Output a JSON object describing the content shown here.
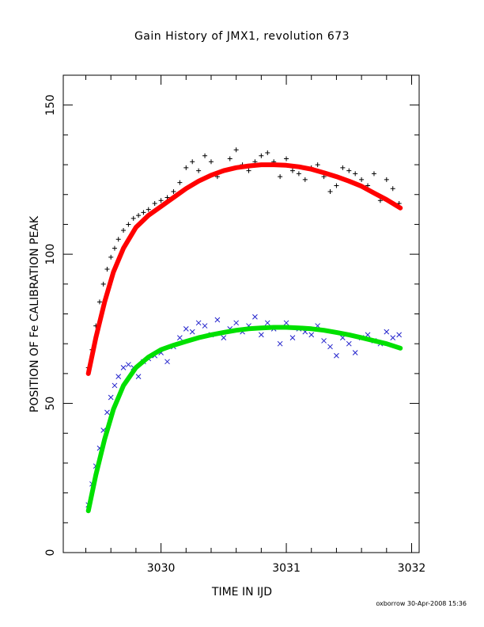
{
  "chart_data": {
    "type": "scatter",
    "title": "Gain History of JMX1, revolution 673",
    "xlabel": "TIME IN IJD",
    "ylabel": "POSITION OF Fe CALIBRATION PEAK",
    "xlim": [
      3029.22,
      3032.06
    ],
    "ylim": [
      0,
      160
    ],
    "xticks": [
      3030,
      3031,
      3032
    ],
    "xtick_labels": [
      "3030",
      "3031",
      "3032"
    ],
    "yticks": [
      0,
      50,
      100,
      150
    ],
    "ytick_labels": [
      "0",
      "50",
      "100",
      "150"
    ],
    "grid": false,
    "legend": "none",
    "series": [
      {
        "marker": "plus",
        "color": "#000000",
        "x": [
          3029.42,
          3029.45,
          3029.48,
          3029.51,
          3029.54,
          3029.57,
          3029.6,
          3029.63,
          3029.66,
          3029.7,
          3029.74,
          3029.78,
          3029.82,
          3029.86,
          3029.9,
          3029.95,
          3030.0,
          3030.05,
          3030.1,
          3030.15,
          3030.2,
          3030.25,
          3030.3,
          3030.35,
          3030.4,
          3030.45,
          3030.5,
          3030.55,
          3030.6,
          3030.65,
          3030.7,
          3030.75,
          3030.8,
          3030.85,
          3030.9,
          3030.95,
          3031.0,
          3031.05,
          3031.1,
          3031.15,
          3031.2,
          3031.25,
          3031.3,
          3031.35,
          3031.4,
          3031.45,
          3031.5,
          3031.55,
          3031.6,
          3031.65,
          3031.7,
          3031.75,
          3031.8,
          3031.85,
          3031.9
        ],
        "y": [
          62,
          68,
          76,
          84,
          90,
          95,
          99,
          102,
          105,
          108,
          110,
          112,
          113,
          114,
          115,
          117,
          118,
          119,
          121,
          124,
          129,
          131,
          128,
          133,
          131,
          126,
          128,
          132,
          135,
          130,
          128,
          131,
          133,
          134,
          131,
          126,
          132,
          128,
          127,
          125,
          129,
          130,
          126,
          121,
          123,
          129,
          128,
          127,
          125,
          123,
          127,
          118,
          125,
          122,
          117
        ]
      },
      {
        "marker": "cross",
        "color": "#2222cc",
        "x": [
          3029.42,
          3029.45,
          3029.48,
          3029.51,
          3029.54,
          3029.57,
          3029.6,
          3029.63,
          3029.66,
          3029.7,
          3029.74,
          3029.78,
          3029.82,
          3029.86,
          3029.9,
          3029.95,
          3030.0,
          3030.05,
          3030.1,
          3030.15,
          3030.2,
          3030.25,
          3030.3,
          3030.35,
          3030.4,
          3030.45,
          3030.5,
          3030.55,
          3030.6,
          3030.65,
          3030.7,
          3030.75,
          3030.8,
          3030.85,
          3030.9,
          3030.95,
          3031.0,
          3031.05,
          3031.1,
          3031.15,
          3031.2,
          3031.25,
          3031.3,
          3031.35,
          3031.4,
          3031.45,
          3031.5,
          3031.55,
          3031.6,
          3031.65,
          3031.7,
          3031.75,
          3031.8,
          3031.85,
          3031.9
        ],
        "y": [
          16,
          23,
          29,
          35,
          41,
          47,
          52,
          56,
          59,
          62,
          63,
          62,
          59,
          64,
          65,
          66,
          67,
          64,
          69,
          72,
          75,
          74,
          77,
          76,
          73,
          78,
          72,
          75,
          77,
          74,
          76,
          79,
          73,
          77,
          75,
          70,
          77,
          72,
          75,
          74,
          73,
          76,
          71,
          69,
          66,
          72,
          70,
          67,
          72,
          73,
          71,
          70,
          74,
          72,
          73
        ]
      },
      {
        "type": "line",
        "color": "#ff0000",
        "x": [
          3029.42,
          3029.48,
          3029.55,
          3029.62,
          3029.7,
          3029.8,
          3029.9,
          3030.0,
          3030.1,
          3030.2,
          3030.3,
          3030.4,
          3030.5,
          3030.6,
          3030.7,
          3030.8,
          3030.9,
          3031.0,
          3031.1,
          3031.2,
          3031.3,
          3031.4,
          3031.5,
          3031.6,
          3031.7,
          3031.8,
          3031.91
        ],
        "y": [
          60,
          72,
          84,
          94,
          102,
          109,
          113,
          116,
          119,
          122,
          124.5,
          126.5,
          128,
          129,
          129.6,
          130,
          130,
          129.8,
          129.3,
          128.5,
          127.3,
          126,
          124.5,
          122.8,
          120.5,
          118.3,
          115.5
        ]
      },
      {
        "type": "line",
        "color": "#00e000",
        "x": [
          3029.42,
          3029.48,
          3029.55,
          3029.62,
          3029.7,
          3029.8,
          3029.9,
          3030.0,
          3030.1,
          3030.2,
          3030.3,
          3030.4,
          3030.5,
          3030.6,
          3030.7,
          3030.8,
          3030.9,
          3031.0,
          3031.1,
          3031.2,
          3031.3,
          3031.4,
          3031.5,
          3031.6,
          3031.7,
          3031.8,
          3031.91
        ],
        "y": [
          14,
          26,
          38,
          48,
          56,
          62,
          65.5,
          68,
          69.5,
          70.8,
          72,
          73,
          73.8,
          74.5,
          75,
          75.3,
          75.5,
          75.5,
          75.3,
          75,
          74.5,
          73.8,
          73,
          72,
          71,
          70,
          68.5
        ]
      }
    ]
  },
  "footer": "oxborrow 30-Apr-2008 15:36"
}
